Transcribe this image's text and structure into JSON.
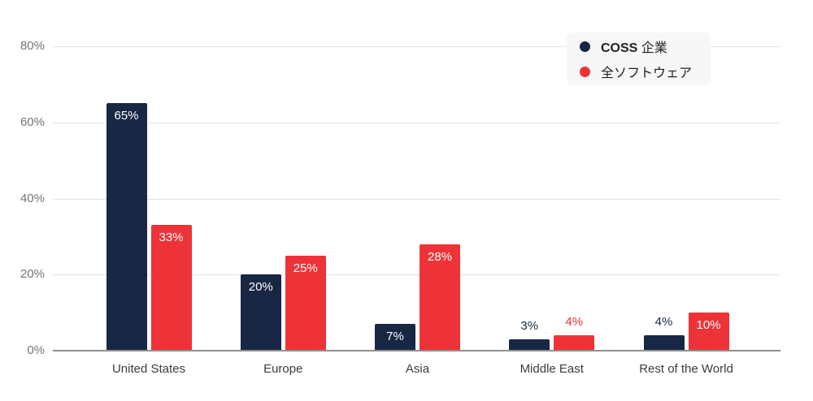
{
  "chart_data": {
    "type": "bar",
    "categories": [
      "United States",
      "Europe",
      "Asia",
      "Middle East",
      "Rest of the World"
    ],
    "series": [
      {
        "name": "COSS 企業",
        "color": "#182743",
        "values": [
          65,
          20,
          7,
          3,
          4
        ],
        "labels": [
          "65%",
          "20%",
          "7%",
          "3%",
          "4%"
        ]
      },
      {
        "name": "全ソフトウェア",
        "color": "#EE3338",
        "values": [
          33,
          25,
          28,
          4,
          10
        ],
        "labels": [
          "33%",
          "25%",
          "28%",
          "4%",
          "10%"
        ]
      }
    ],
    "yticks": [
      0,
      20,
      40,
      60,
      80
    ],
    "ytick_labels": [
      "0%",
      "20%",
      "40%",
      "60%",
      "80%"
    ],
    "ylim": [
      0,
      85
    ],
    "grid": true,
    "legend_position": "top-right",
    "value_label_rule": "white label inside bar when bar is tall enough, series-colored label above bar otherwise"
  },
  "legend": {
    "items": [
      {
        "bold": "COSS",
        "rest": " 企業",
        "color": "#182743"
      },
      {
        "bold": "",
        "rest": "全ソフトウェア",
        "color": "#EE3338"
      }
    ]
  },
  "colors": {
    "bar_navy": "#182743",
    "bar_red": "#EE3338",
    "grid_line": "#e2e2e2",
    "axis_line": "#8f8f8f",
    "y_tick_text": "#747474",
    "x_tick_text": "#3b3b3b",
    "legend_background": "#f7f7f7",
    "inside_label_text": "#ffffff"
  }
}
